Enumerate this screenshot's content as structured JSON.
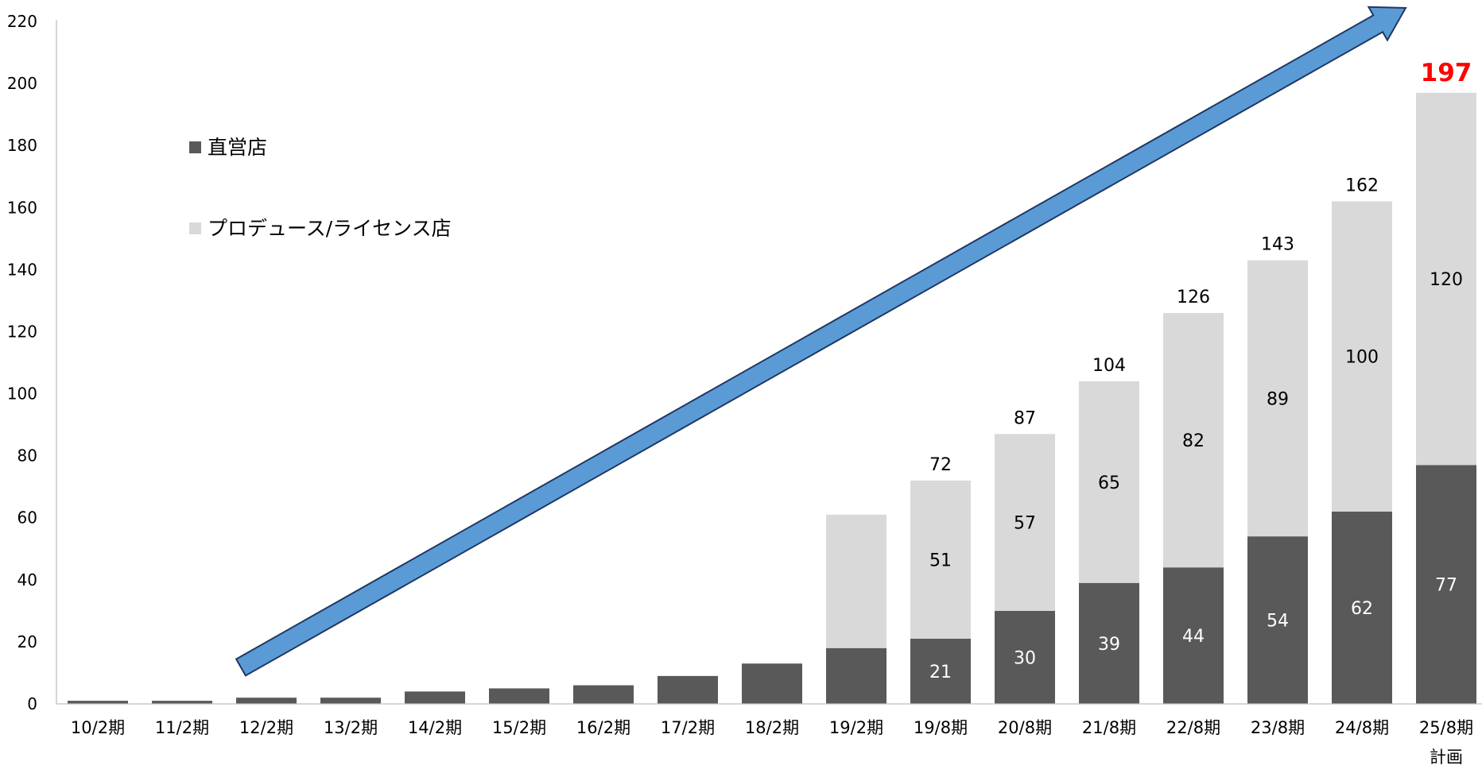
{
  "chart_data": {
    "type": "bar",
    "stacked": true,
    "categories": [
      "10/2期",
      "11/2期",
      "12/2期",
      "13/2期",
      "14/2期",
      "15/2期",
      "16/2期",
      "17/2期",
      "18/2期",
      "19/2期",
      "19/8期",
      "20/8期",
      "21/8期",
      "22/8期",
      "23/8期",
      "24/8期",
      "25/8期"
    ],
    "category_sublabels": [
      "",
      "",
      "",
      "",
      "",
      "",
      "",
      "",
      "",
      "",
      "",
      "",
      "",
      "",
      "",
      "",
      "計画"
    ],
    "series": [
      {
        "name": "直営店",
        "color": "#595959",
        "values": [
          1,
          1,
          2,
          2,
          4,
          5,
          6,
          9,
          13,
          18,
          21,
          30,
          39,
          44,
          54,
          62,
          77
        ],
        "labels": [
          "",
          "",
          "",
          "",
          "",
          "",
          "",
          "",
          "",
          "",
          "21",
          "30",
          "39",
          "44",
          "54",
          "62",
          "77"
        ]
      },
      {
        "name": "プロデュース/ライセンス店",
        "color": "#d9d9d9",
        "values": [
          0,
          0,
          0,
          0,
          0,
          0,
          0,
          0,
          0,
          43,
          51,
          57,
          65,
          82,
          89,
          100,
          120
        ],
        "labels": [
          "",
          "",
          "",
          "",
          "",
          "",
          "",
          "",
          "",
          "",
          "51",
          "57",
          "65",
          "82",
          "89",
          "100",
          "120"
        ]
      }
    ],
    "totals": [
      "",
      "",
      "",
      "",
      "",
      "",
      "",
      "",
      "",
      "",
      "72",
      "87",
      "104",
      "126",
      "143",
      "162",
      "197"
    ],
    "highlight_total_index": 16,
    "highlight_color": "#ff0000",
    "yticks": [
      "0",
      "20",
      "40",
      "60",
      "80",
      "100",
      "120",
      "140",
      "160",
      "180",
      "200",
      "220"
    ],
    "ylim": [
      0,
      220
    ],
    "grid": false,
    "legend_position": "top-left",
    "title": "",
    "xlabel": "",
    "ylabel": "",
    "arrow": {
      "color": "#5b9bd5",
      "outline": "#1f3864",
      "direction": "up-right"
    }
  }
}
